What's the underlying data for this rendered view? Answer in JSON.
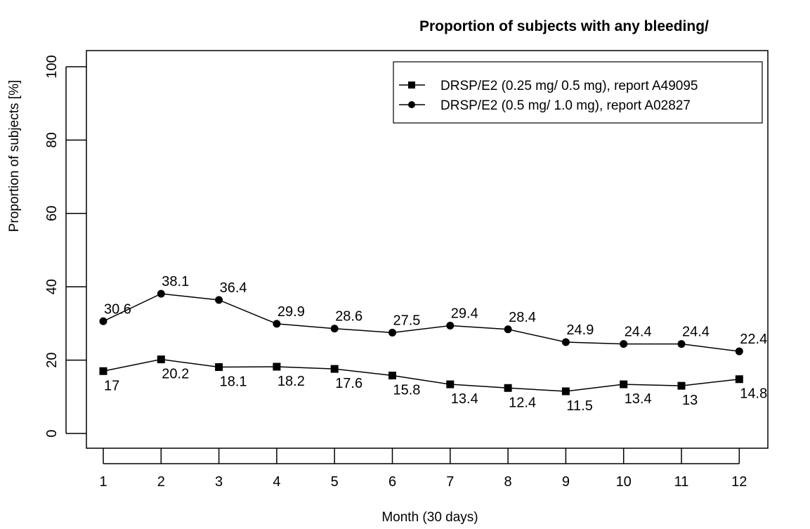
{
  "chart_data": {
    "type": "line",
    "title": "Proportion of subjects with any bleeding/",
    "xlabel": "Month (30 days)",
    "ylabel": "Proportion of subjects [%]",
    "ylim": [
      0,
      100
    ],
    "xlim": [
      1,
      12
    ],
    "categories": [
      "1",
      "2",
      "3",
      "4",
      "5",
      "6",
      "7",
      "8",
      "9",
      "10",
      "11",
      "12"
    ],
    "yticks": [
      "0",
      "20",
      "40",
      "60",
      "80",
      "100"
    ],
    "grid": false,
    "legend_position": "top-right",
    "series": [
      {
        "name": "DRSP/E2 (0.25 mg/ 0.5 mg), report A49095",
        "marker": "square",
        "values": [
          17,
          20.2,
          18.1,
          18.2,
          17.6,
          15.8,
          13.4,
          12.4,
          11.5,
          13.4,
          13,
          14.8
        ],
        "labels": [
          "17",
          "20.2",
          "18.1",
          "18.2",
          "17.6",
          "15.8",
          "13.4",
          "12.4",
          "11.5",
          "13.4",
          "13",
          "14.8"
        ],
        "label_position": "below"
      },
      {
        "name": "DRSP/E2 (0.5 mg/ 1.0 mg), report A02827",
        "marker": "circle",
        "values": [
          30.6,
          38.1,
          36.4,
          29.9,
          28.6,
          27.5,
          29.4,
          28.4,
          24.9,
          24.4,
          24.4,
          22.4
        ],
        "labels": [
          "30.6",
          "38.1",
          "36.4",
          "29.9",
          "28.6",
          "27.5",
          "29.4",
          "28.4",
          "24.9",
          "24.4",
          "24.4",
          "22.4"
        ],
        "label_position": "above"
      }
    ]
  }
}
